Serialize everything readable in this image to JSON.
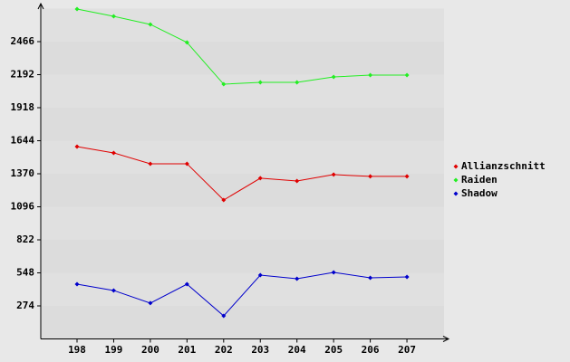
{
  "chart_data": {
    "type": "line",
    "categories": [
      "198",
      "199",
      "200",
      "201",
      "202",
      "203",
      "204",
      "205",
      "206",
      "207"
    ],
    "series": [
      {
        "name": "Allianzschnitt",
        "color": "#e00000",
        "values": [
          1595,
          1543,
          1453,
          1453,
          1152,
          1333,
          1310,
          1363,
          1348,
          1348
        ]
      },
      {
        "name": "Raiden",
        "color": "#22ee22",
        "values": [
          2736,
          2676,
          2609,
          2459,
          2113,
          2128,
          2128,
          2173,
          2188,
          2188
        ]
      },
      {
        "name": "Shadow",
        "color": "#0000cc",
        "values": [
          454,
          402,
          297,
          454,
          191,
          529,
          499,
          552,
          507,
          514
        ]
      }
    ],
    "ylim": [
      0,
      2740
    ],
    "yticks": [
      274,
      548,
      822,
      1096,
      1370,
      1644,
      1918,
      2192,
      2466
    ],
    "bands": true,
    "legend": "right"
  }
}
